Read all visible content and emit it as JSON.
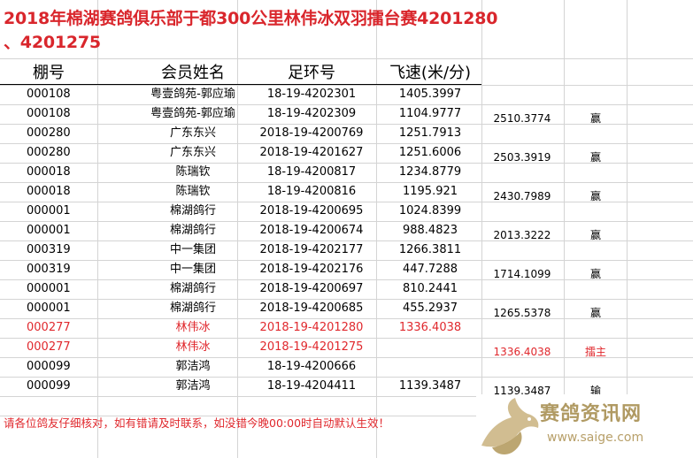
{
  "title": {
    "line1": "2018年棉湖赛鸽俱乐部于都300公里林伟冰双羽擂台赛4201280",
    "line2": "、4201275"
  },
  "headers": {
    "pen": "棚号",
    "member": "会员姓名",
    "ring": "足环号",
    "speed": "飞速(米/分)"
  },
  "rows": [
    {
      "pen": "000108",
      "member": "粤壹鸽苑-郭应瑜",
      "ring": "18-19-4202301",
      "speed": "1405.3997"
    },
    {
      "pen": "000108",
      "member": "粤壹鸽苑-郭应瑜",
      "ring": "18-19-4202309",
      "speed": "1104.9777"
    },
    {
      "pen": "000280",
      "member": "广东东兴",
      "ring": "2018-19-4200769",
      "speed": "1251.7913"
    },
    {
      "pen": "000280",
      "member": "广东东兴",
      "ring": "2018-19-4201627",
      "speed": "1251.6006"
    },
    {
      "pen": "000018",
      "member": "陈瑞钦",
      "ring": "18-19-4200817",
      "speed": "1234.8779"
    },
    {
      "pen": "000018",
      "member": "陈瑞钦",
      "ring": "18-19-4200816",
      "speed": "1195.921"
    },
    {
      "pen": "000001",
      "member": "棉湖鸽行",
      "ring": "2018-19-4200695",
      "speed": "1024.8399"
    },
    {
      "pen": "000001",
      "member": "棉湖鸽行",
      "ring": "2018-19-4200674",
      "speed": "988.4823"
    },
    {
      "pen": "000319",
      "member": "中一集团",
      "ring": "2018-19-4202177",
      "speed": "1266.3811"
    },
    {
      "pen": "000319",
      "member": "中一集团",
      "ring": "2018-19-4202176",
      "speed": "447.7288"
    },
    {
      "pen": "000001",
      "member": "棉湖鸽行",
      "ring": "2018-19-4200697",
      "speed": "810.2441"
    },
    {
      "pen": "000001",
      "member": "棉湖鸽行",
      "ring": "2018-19-4200685",
      "speed": "455.2937"
    },
    {
      "pen": "000277",
      "member": "林伟冰",
      "ring": "2018-19-4201280",
      "speed": "1336.4038",
      "highlight": true
    },
    {
      "pen": "000277",
      "member": "林伟冰",
      "ring": "2018-19-4201275",
      "speed": "",
      "highlight": true
    },
    {
      "pen": "000099",
      "member": "郭洁鸿",
      "ring": "18-19-4200666",
      "speed": ""
    },
    {
      "pen": "000099",
      "member": "郭洁鸿",
      "ring": "18-19-4204411",
      "speed": "1139.3487"
    }
  ],
  "pairs": [
    {
      "total": "2510.3774",
      "result": "赢"
    },
    {
      "total": "2503.3919",
      "result": "赢"
    },
    {
      "total": "2430.7989",
      "result": "赢"
    },
    {
      "total": "2013.3222",
      "result": "赢"
    },
    {
      "total": "1714.1099",
      "result": "赢"
    },
    {
      "total": "1265.5378",
      "result": "赢"
    },
    {
      "total": "1336.4038",
      "result": "擂主",
      "highlight": true
    },
    {
      "total": "1139.3487",
      "result": "输"
    }
  ],
  "footer": "请各位鸽友仔细核对，如有错请及时联系，如没错今晚00:00时自动默认生效！",
  "watermark": {
    "text": "赛鸽资讯网",
    "url": "www.saige.com"
  },
  "colors": {
    "highlight": "#e0282d",
    "grid": "#d4d4d4",
    "watermark": "#b09a63"
  }
}
